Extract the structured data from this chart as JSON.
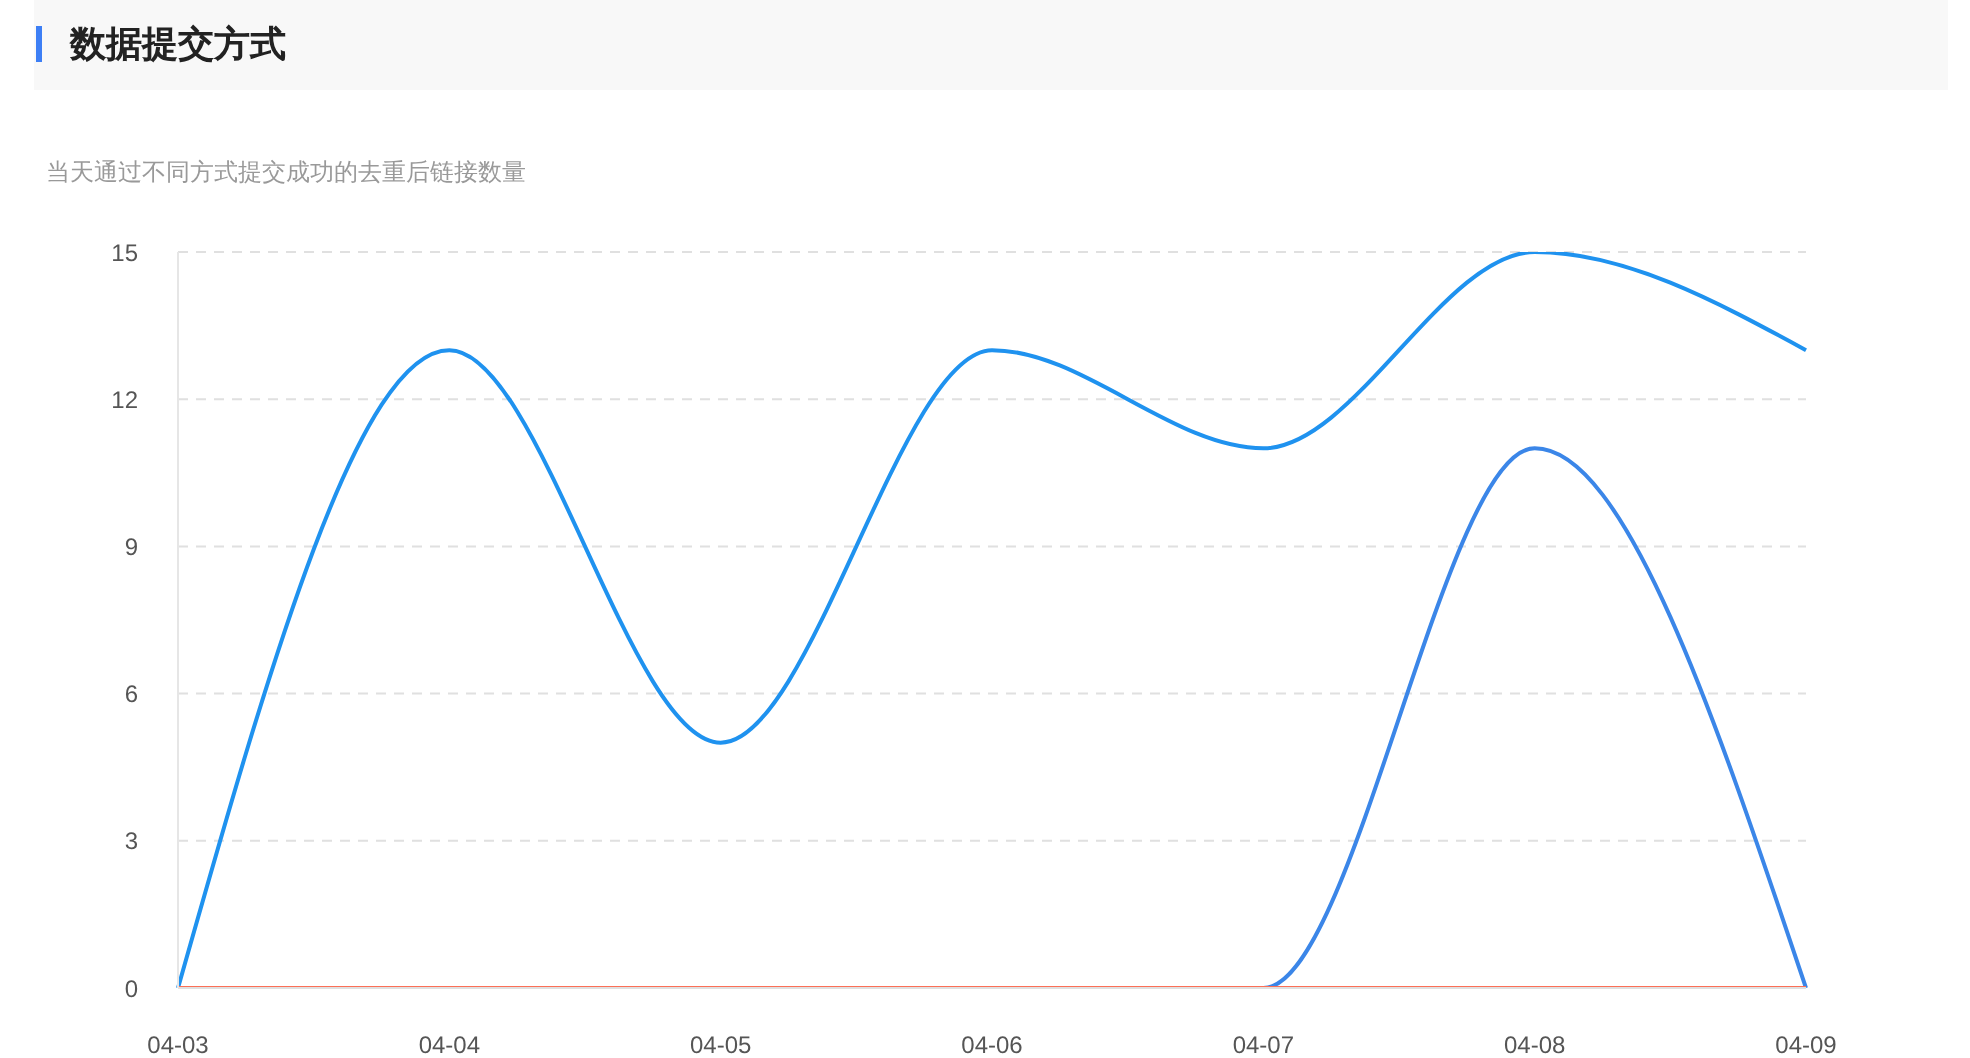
{
  "chart_data": {
    "type": "line",
    "title": "数据提交方式",
    "subtitle": "当天通过不同方式提交成功的去重后链接数量",
    "categories": [
      "04-03",
      "04-04",
      "04-05",
      "04-06",
      "04-07",
      "04-08",
      "04-09"
    ],
    "series": [
      {
        "color": "#1f92ef",
        "values": [
          0,
          13,
          5,
          13,
          11,
          15,
          13
        ]
      },
      {
        "color": "#3b86e8",
        "values": [
          0,
          0,
          0,
          0,
          0,
          11,
          0
        ]
      },
      {
        "color": "#fc6f56",
        "values": [
          0,
          0,
          0,
          0,
          0,
          0,
          0
        ]
      }
    ],
    "ylim": [
      0,
      15
    ],
    "yticks": [
      0,
      3,
      6,
      9,
      12,
      15
    ],
    "grid": "y",
    "line_style": "solid"
  }
}
